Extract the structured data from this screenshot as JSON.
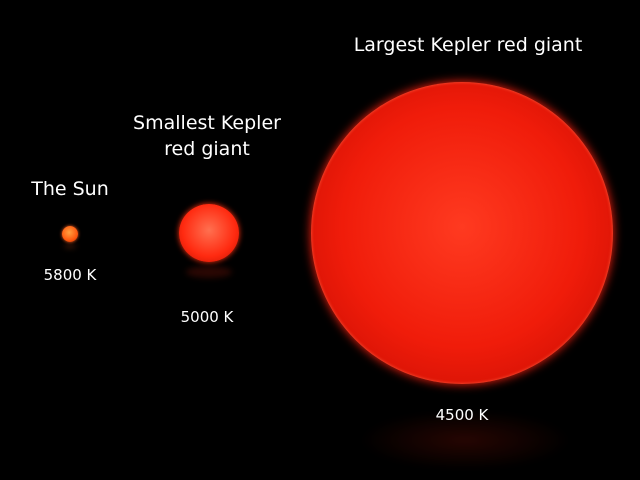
{
  "stars": [
    {
      "label": "The Sun",
      "temperature": "5800 K",
      "color": "#ff5a10"
    },
    {
      "label_lines": [
        "Smallest Kepler",
        "red giant"
      ],
      "temperature": "5000 K",
      "color": "#ff2a10"
    },
    {
      "label": "Largest Kepler red giant",
      "temperature": "4500 K",
      "color": "#ee1a08"
    }
  ],
  "background_color": "#000000"
}
